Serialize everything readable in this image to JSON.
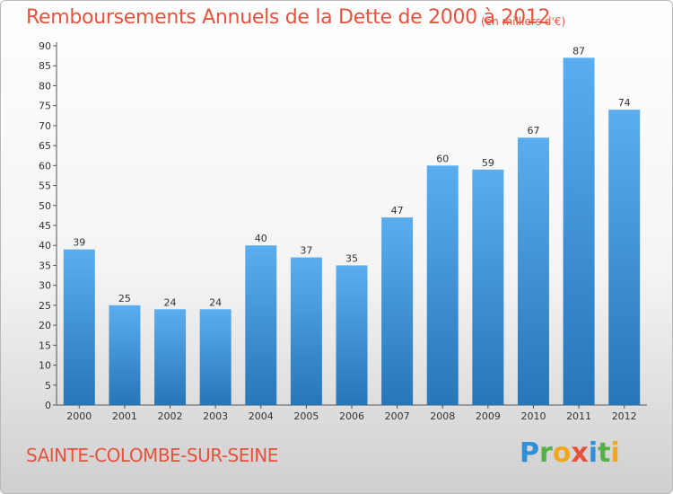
{
  "chart_data": {
    "type": "bar",
    "title": "Remboursements Annuels de la Dette de 2000 à 2012",
    "unit_label": "(en milliers d'€)",
    "categories": [
      "2000",
      "2001",
      "2002",
      "2003",
      "2004",
      "2005",
      "2006",
      "2007",
      "2008",
      "2009",
      "2010",
      "2011",
      "2012"
    ],
    "values": [
      39,
      25,
      24,
      24,
      40,
      37,
      35,
      47,
      60,
      59,
      67,
      87,
      74
    ],
    "ylim": [
      0,
      90
    ],
    "yticks": [
      0,
      5,
      10,
      15,
      20,
      25,
      30,
      35,
      40,
      45,
      50,
      55,
      60,
      65,
      70,
      75,
      80,
      85,
      90
    ],
    "grid": false,
    "bar_color_top": "#5aaef0",
    "bar_color_bottom": "#2676b8"
  },
  "footer": {
    "commune": "SAINTE-COLOMBE-SUR-SEINE",
    "logo_letters": [
      "P",
      "r",
      "o",
      "x",
      "i",
      "t",
      "i"
    ]
  }
}
